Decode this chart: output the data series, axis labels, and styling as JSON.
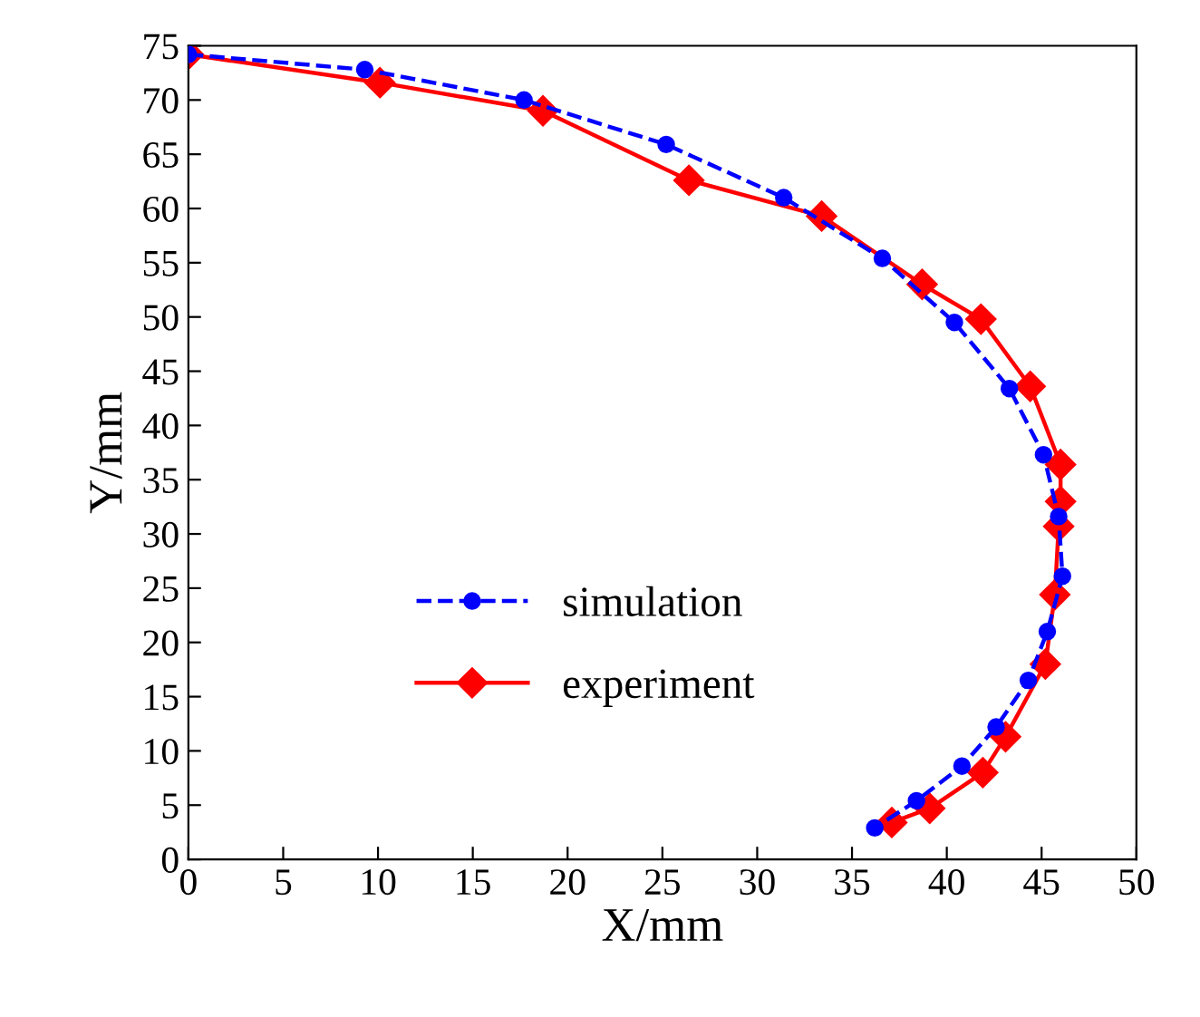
{
  "chart_data": {
    "type": "line",
    "xlabel": "X/mm",
    "ylabel": "Y/mm",
    "xlim": [
      0,
      50
    ],
    "ylim": [
      0,
      75
    ],
    "xticks": [
      0,
      5,
      10,
      15,
      20,
      25,
      30,
      35,
      40,
      45,
      50
    ],
    "yticks": [
      0,
      5,
      10,
      15,
      20,
      25,
      30,
      35,
      40,
      45,
      50,
      55,
      60,
      65,
      70,
      75
    ],
    "grid": false,
    "legend": "lower left",
    "series": [
      {
        "name": "simulation",
        "color": "#0000ff",
        "marker": "circle",
        "line_style": "dashed",
        "x": [
          0,
          9.3,
          17.7,
          25.2,
          31.4,
          36.6,
          40.4,
          43.3,
          45.1,
          45.9,
          46.1,
          45.3,
          44.3,
          42.6,
          40.8,
          38.4,
          36.2
        ],
        "values": [
          74.2,
          72.8,
          70,
          65.9,
          61,
          55.4,
          49.5,
          43.4,
          37.3,
          31.6,
          26.1,
          21,
          16.5,
          12.2,
          8.6,
          5.4,
          2.9
        ]
      },
      {
        "name": "experiment",
        "color": "#ff0000",
        "marker": "diamond",
        "line_style": "solid",
        "x": [
          0,
          10.1,
          18.7,
          26.4,
          33.4,
          38.7,
          41.8,
          44.4,
          46,
          46,
          45.9,
          45.7,
          45.2,
          43.1,
          41.9,
          39.1,
          37.1
        ],
        "values": [
          74.2,
          71.6,
          69,
          62.6,
          59.3,
          53,
          49.8,
          43.6,
          36.4,
          33,
          30.7,
          24.4,
          18,
          11.3,
          8,
          4.7,
          3.4
        ]
      }
    ]
  }
}
